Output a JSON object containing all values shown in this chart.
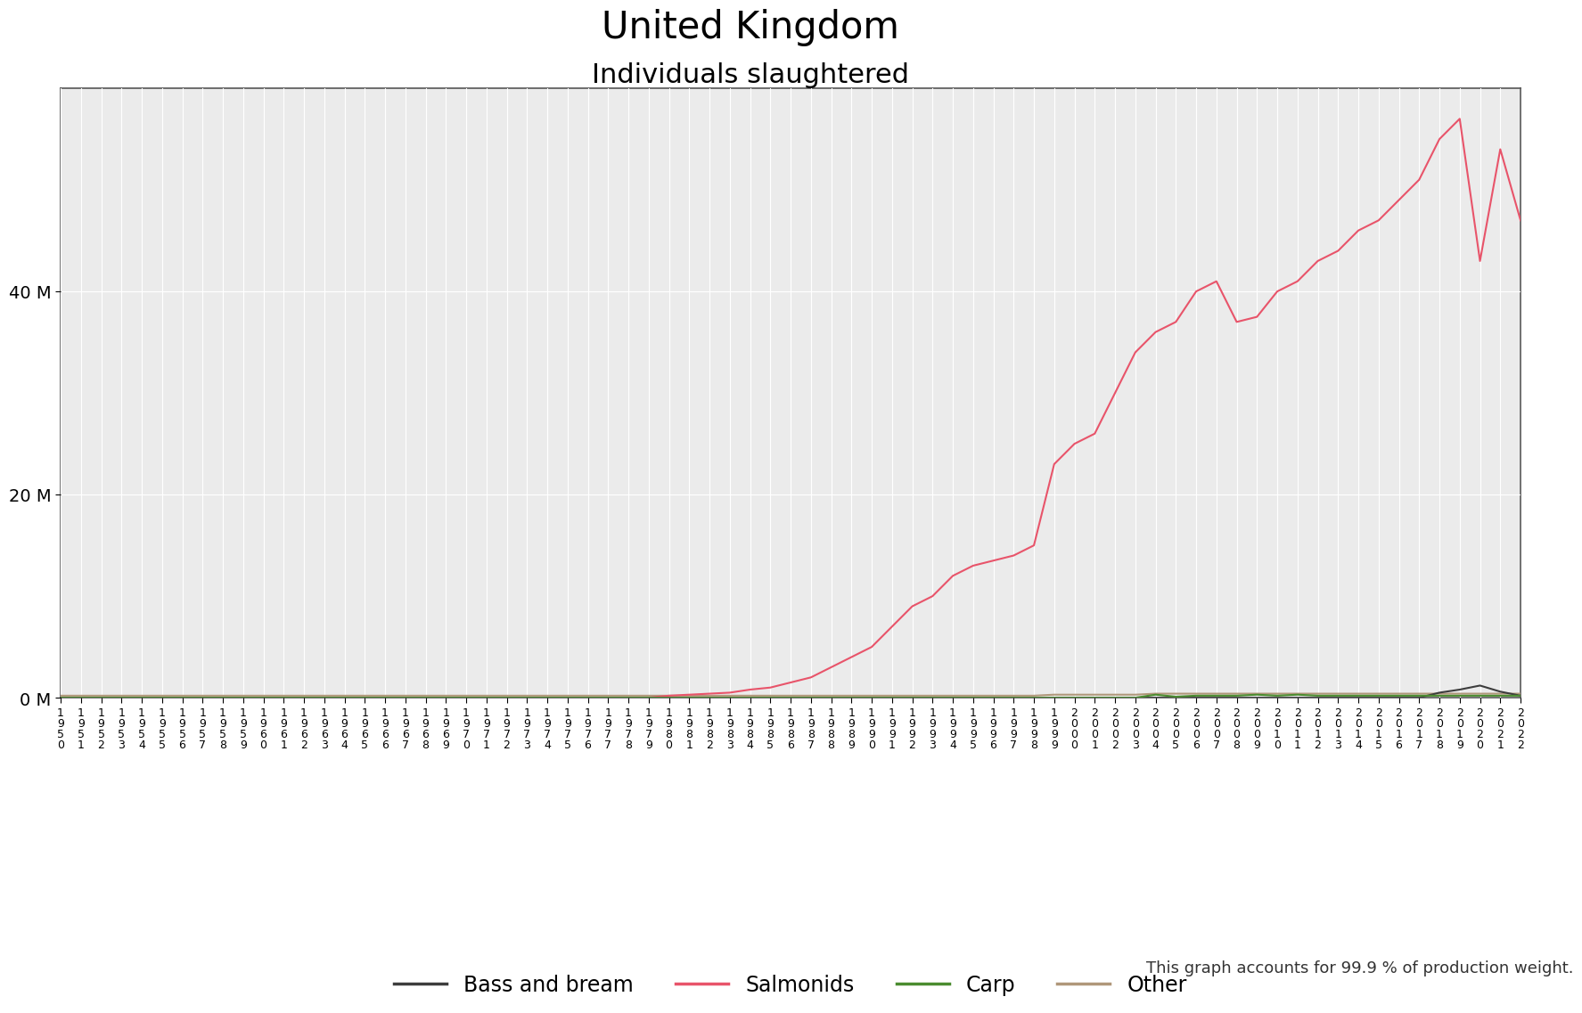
{
  "title": "United Kingdom",
  "subtitle": "Individuals slaughtered",
  "footnote": "This graph accounts for 99.9 % of production weight.",
  "years": [
    1950,
    1951,
    1952,
    1953,
    1954,
    1955,
    1956,
    1957,
    1958,
    1959,
    1960,
    1961,
    1962,
    1963,
    1964,
    1965,
    1966,
    1967,
    1968,
    1969,
    1970,
    1971,
    1972,
    1973,
    1974,
    1975,
    1976,
    1977,
    1978,
    1979,
    1980,
    1981,
    1982,
    1983,
    1984,
    1985,
    1986,
    1987,
    1988,
    1989,
    1990,
    1991,
    1992,
    1993,
    1994,
    1995,
    1996,
    1997,
    1998,
    1999,
    2000,
    2001,
    2002,
    2003,
    2004,
    2005,
    2006,
    2007,
    2008,
    2009,
    2010,
    2011,
    2012,
    2013,
    2014,
    2015,
    2016,
    2017,
    2018,
    2019,
    2020,
    2021,
    2022
  ],
  "salmonids": [
    0,
    0,
    0,
    0,
    0,
    0,
    0,
    0,
    0,
    0,
    0,
    0,
    0,
    0,
    0,
    0,
    0,
    0,
    0,
    0,
    0,
    0,
    0,
    0,
    0,
    0,
    0,
    0,
    0,
    0,
    200000,
    300000,
    400000,
    500000,
    800000,
    1000000,
    1500000,
    2000000,
    3000000,
    4000000,
    5000000,
    7000000,
    9000000,
    10000000,
    12000000,
    13000000,
    13500000,
    14000000,
    15000000,
    23000000,
    25000000,
    26000000,
    30000000,
    34000000,
    36000000,
    37000000,
    40000000,
    41000000,
    37000000,
    37500000,
    40000000,
    41000000,
    43000000,
    44000000,
    46000000,
    47000000,
    49000000,
    51000000,
    55000000,
    57000000,
    43000000,
    54000000,
    47000000
  ],
  "bass_bream": [
    0,
    0,
    0,
    0,
    0,
    0,
    0,
    0,
    0,
    0,
    0,
    0,
    0,
    0,
    0,
    0,
    0,
    0,
    0,
    0,
    0,
    0,
    0,
    0,
    0,
    0,
    0,
    0,
    0,
    0,
    0,
    0,
    0,
    0,
    0,
    0,
    0,
    0,
    0,
    0,
    0,
    0,
    0,
    0,
    0,
    0,
    0,
    0,
    0,
    0,
    0,
    0,
    0,
    0,
    0,
    0,
    0,
    0,
    0,
    0,
    0,
    0,
    0,
    0,
    0,
    0,
    0,
    0,
    500000,
    800000,
    1200000,
    600000,
    200000
  ],
  "carp": [
    0,
    0,
    0,
    0,
    0,
    0,
    0,
    0,
    0,
    0,
    0,
    0,
    0,
    0,
    0,
    0,
    0,
    0,
    0,
    0,
    0,
    0,
    0,
    0,
    0,
    0,
    0,
    0,
    0,
    0,
    0,
    0,
    0,
    0,
    0,
    0,
    0,
    0,
    0,
    0,
    0,
    0,
    0,
    0,
    0,
    0,
    0,
    0,
    0,
    0,
    0,
    0,
    0,
    0,
    300000,
    100000,
    200000,
    200000,
    200000,
    300000,
    200000,
    300000,
    200000,
    200000,
    200000,
    200000,
    200000,
    200000,
    200000,
    200000,
    200000,
    200000,
    200000
  ],
  "other": [
    200000,
    200000,
    200000,
    200000,
    200000,
    200000,
    200000,
    200000,
    200000,
    200000,
    200000,
    200000,
    200000,
    200000,
    200000,
    200000,
    200000,
    200000,
    200000,
    200000,
    200000,
    200000,
    200000,
    200000,
    200000,
    200000,
    200000,
    200000,
    200000,
    200000,
    200000,
    200000,
    200000,
    200000,
    200000,
    200000,
    200000,
    200000,
    200000,
    200000,
    200000,
    200000,
    200000,
    200000,
    200000,
    200000,
    200000,
    200000,
    200000,
    300000,
    300000,
    300000,
    300000,
    300000,
    400000,
    400000,
    400000,
    400000,
    400000,
    400000,
    400000,
    400000,
    400000,
    400000,
    400000,
    400000,
    400000,
    400000,
    400000,
    400000,
    400000,
    400000,
    400000
  ],
  "colors": {
    "salmonids": "#e8546a",
    "bass_bream": "#3d3d3d",
    "carp": "#4a8c2f",
    "other": "#b0977a"
  },
  "legend_labels": [
    "Bass and bream",
    "Salmonids",
    "Carp",
    "Other"
  ],
  "ylim": [
    0,
    60000000
  ],
  "yticks": [
    0,
    20000000,
    40000000
  ],
  "ytick_labels": [
    "0 M",
    "20 M",
    "40 M"
  ],
  "bg_color": "#ffffff",
  "plot_bg": "#ebebeb",
  "grid_color": "#ffffff",
  "title_fontsize": 30,
  "subtitle_fontsize": 22,
  "tick_fontsize": 9,
  "legend_fontsize": 17
}
